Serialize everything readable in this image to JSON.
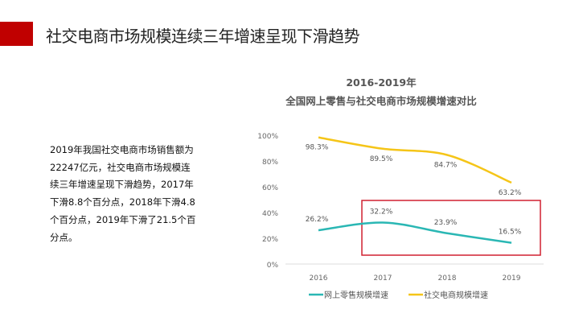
{
  "header": {
    "title": "社交电商市场规模连续三年增速呈现下滑趋势",
    "accent_color": "#c00000"
  },
  "body": {
    "text": "2019年我国社交电商市场销售额为22247亿元，社交电商市场规模连续三年增速呈现下滑趋势，2017年下滑8.8个百分点，2018年下滑4.8个百分点，2019年下滑了21.5个百分点。"
  },
  "chart_data": {
    "type": "line",
    "title": "2016-2019年",
    "subtitle": "全国网上零售与社交电商市场规模增速对比",
    "categories": [
      "2016",
      "2017",
      "2018",
      "2019"
    ],
    "yticks": [
      "0%",
      "20%",
      "40%",
      "60%",
      "80%",
      "100%"
    ],
    "ylim": [
      0,
      100
    ],
    "grid": false,
    "legend": "bottom",
    "series": [
      {
        "name": "网上零售规模增速",
        "values": [
          26.2,
          32.2,
          23.9,
          16.5
        ],
        "labels": [
          "26.2%",
          "32.2%",
          "23.9%",
          "16.5%"
        ],
        "color": "#2ab7b4"
      },
      {
        "name": "社交电商规模增速",
        "values": [
          98.3,
          89.5,
          84.7,
          63.2
        ],
        "labels": [
          "98.3%",
          "89.5%",
          "84.7%",
          "63.2%"
        ],
        "color": "#f5c518"
      }
    ],
    "highlight": {
      "categories": [
        "2017",
        "2019"
      ],
      "color": "#d02030"
    }
  }
}
